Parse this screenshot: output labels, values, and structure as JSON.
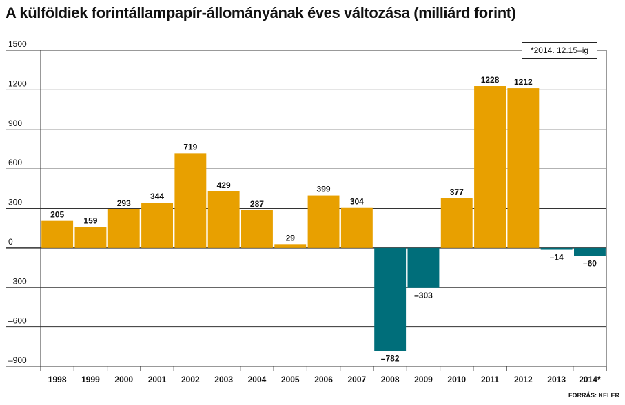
{
  "title": "A külföldiek forintállampapír-állományának éves változása (milliárd forint)",
  "note": "*2014. 12.15–ig",
  "source": "FORRÁS: KELER",
  "colors": {
    "positive": "#e8a000",
    "negative": "#006e7a",
    "grid": "#333333"
  },
  "chart_data": {
    "type": "bar",
    "title": "A külföldiek forintállampapír-állományának éves változása (milliárd forint)",
    "categories": [
      "1998",
      "1999",
      "2000",
      "2001",
      "2002",
      "2003",
      "2004",
      "2005",
      "2006",
      "2007",
      "2008",
      "2009",
      "2010",
      "2011",
      "2012",
      "2013",
      "2014*"
    ],
    "values": [
      205,
      159,
      293,
      344,
      719,
      429,
      287,
      29,
      399,
      304,
      -782,
      -303,
      377,
      1228,
      1212,
      -14,
      -60
    ],
    "value_labels": [
      "205",
      "159",
      "293",
      "344",
      "719",
      "429",
      "287",
      "29",
      "399",
      "304",
      "–782",
      "–303",
      "377",
      "1228",
      "1212",
      "–14",
      "–60"
    ],
    "yticks": [
      1500,
      1200,
      900,
      600,
      300,
      0,
      -300,
      -600,
      -900
    ],
    "ytick_labels": [
      "1500",
      "1200",
      "900",
      "600",
      "300",
      "0",
      "–300",
      "–600",
      "–900"
    ],
    "ylim": [
      -900,
      1500
    ],
    "grid": true
  }
}
